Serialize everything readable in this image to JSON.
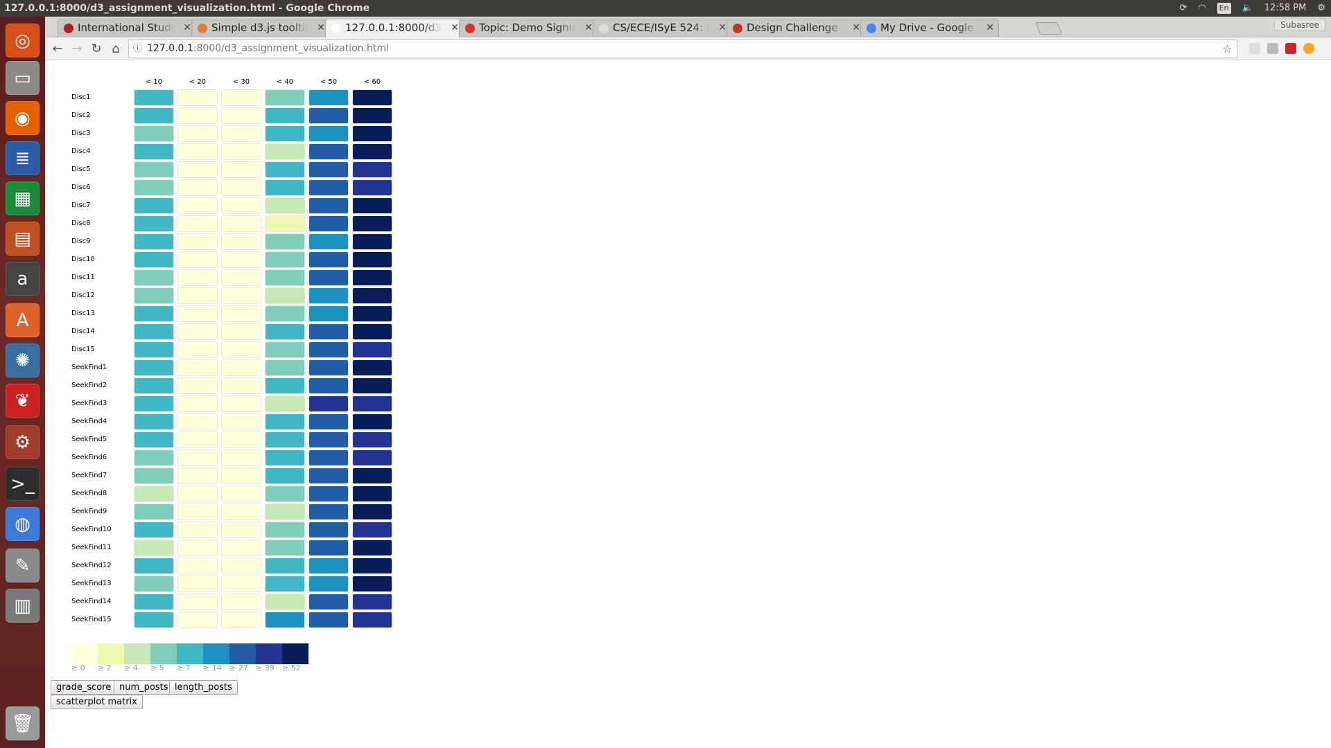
{
  "window": {
    "title": "127.0.0.1:8000/d3_assignment_visualization.html - Google Chrome",
    "clock": "12:58 PM",
    "keyboard": "En",
    "profile": "Subasree"
  },
  "tabs": [
    {
      "label": "International Stude",
      "favicon_color": "#b22222"
    },
    {
      "label": "Simple d3.js tooltip",
      "favicon_color": "#e07b39"
    },
    {
      "label": "127.0.0.1:8000/d3_a",
      "favicon_color": "#ffffff",
      "active": true
    },
    {
      "label": "Topic: Demo Signup",
      "favicon_color": "#d9322b"
    },
    {
      "label": "CS/ECE/ISyE 524: In",
      "favicon_color": "#dddddd"
    },
    {
      "label": "Design Challenge 3",
      "favicon_color": "#c0392b"
    },
    {
      "label": "My Drive - Google D",
      "favicon_color": "#4285f4"
    }
  ],
  "address": {
    "host": "127.0.0.1",
    "path": ":8000/d3_assignment_visualization.html"
  },
  "launcher": [
    {
      "icon": "ubuntu-dash-icon",
      "color": "#d94d17",
      "glyph": "◎"
    },
    {
      "icon": "files-icon",
      "color": "#8d8a85",
      "glyph": "▭"
    },
    {
      "icon": "firefox-icon",
      "color": "#e66000",
      "glyph": "◉"
    },
    {
      "icon": "writer-icon",
      "color": "#2a5ca8",
      "glyph": "≣"
    },
    {
      "icon": "calc-icon",
      "color": "#1e8a3c",
      "glyph": "▦"
    },
    {
      "icon": "impress-icon",
      "color": "#c0501f",
      "glyph": "▤"
    },
    {
      "icon": "amazon-icon",
      "color": "#444444",
      "glyph": "a"
    },
    {
      "icon": "software-center-icon",
      "color": "#e0622b",
      "glyph": "A"
    },
    {
      "icon": "shutter-icon",
      "color": "#3a6ea5",
      "glyph": "✺"
    },
    {
      "icon": "acrobat-icon",
      "color": "#cc2222",
      "glyph": "❦"
    },
    {
      "icon": "settings-icon",
      "color": "#a33b2a",
      "glyph": "⚙"
    },
    {
      "icon": "terminal-icon",
      "color": "#2c2c2c",
      "glyph": ">_"
    },
    {
      "icon": "chrome-icon",
      "color": "#3b78d8",
      "glyph": "◍"
    },
    {
      "icon": "text-editor-icon",
      "color": "#8a8a8a",
      "glyph": "✎"
    },
    {
      "icon": "scanner-icon",
      "color": "#7a7a7a",
      "glyph": "▥"
    },
    {
      "icon": "trash-icon",
      "color": "#9a9a9a",
      "glyph": "🗑"
    }
  ],
  "chart_data": {
    "type": "heatmap",
    "columns": [
      "< 10",
      "< 20",
      "< 30",
      "< 40",
      "< 50",
      "< 60"
    ],
    "rows": [
      "Disc1",
      "Disc2",
      "Disc3",
      "Disc4",
      "Disc5",
      "Disc6",
      "Disc7",
      "Disc8",
      "Disc9",
      "Disc10",
      "Disc11",
      "Disc12",
      "Disc13",
      "Disc14",
      "Disc15",
      "SeekFind1",
      "SeekFind2",
      "SeekFind3",
      "SeekFind4",
      "SeekFind5",
      "SeekFind6",
      "SeekFind7",
      "SeekFind8",
      "SeekFind9",
      "SeekFind10",
      "SeekFind11",
      "SeekFind12",
      "SeekFind13",
      "SeekFind14",
      "SeekFind15"
    ],
    "color_bins": [
      0,
      2,
      4,
      5,
      7,
      14,
      27,
      39,
      52
    ],
    "colors": [
      "#ffffd9",
      "#edf8b1",
      "#c7e9b4",
      "#7fcdbb",
      "#41b6c4",
      "#1d91c0",
      "#225ea8",
      "#253494",
      "#081d58"
    ],
    "values": [
      [
        7,
        0,
        0,
        5,
        14,
        52
      ],
      [
        7,
        0,
        0,
        7,
        27,
        52
      ],
      [
        5,
        0,
        0,
        7,
        14,
        52
      ],
      [
        7,
        0,
        0,
        4,
        27,
        52
      ],
      [
        5,
        0,
        0,
        7,
        27,
        39
      ],
      [
        5,
        0,
        0,
        7,
        27,
        39
      ],
      [
        7,
        0,
        0,
        4,
        27,
        52
      ],
      [
        7,
        0,
        0,
        2,
        27,
        52
      ],
      [
        7,
        0,
        0,
        5,
        14,
        52
      ],
      [
        7,
        0,
        0,
        5,
        27,
        52
      ],
      [
        5,
        0,
        0,
        5,
        27,
        52
      ],
      [
        5,
        0,
        0,
        4,
        14,
        52
      ],
      [
        7,
        0,
        0,
        5,
        14,
        52
      ],
      [
        7,
        0,
        0,
        7,
        27,
        52
      ],
      [
        7,
        0,
        0,
        5,
        27,
        39
      ],
      [
        7,
        0,
        0,
        5,
        27,
        52
      ],
      [
        7,
        0,
        0,
        7,
        27,
        52
      ],
      [
        7,
        0,
        0,
        4,
        39,
        39
      ],
      [
        7,
        0,
        0,
        7,
        27,
        52
      ],
      [
        7,
        0,
        0,
        7,
        27,
        39
      ],
      [
        5,
        0,
        0,
        7,
        27,
        39
      ],
      [
        5,
        0,
        0,
        7,
        27,
        52
      ],
      [
        4,
        0,
        0,
        5,
        27,
        52
      ],
      [
        5,
        0,
        0,
        4,
        27,
        52
      ],
      [
        7,
        0,
        0,
        5,
        27,
        39
      ],
      [
        4,
        0,
        0,
        5,
        27,
        52
      ],
      [
        7,
        0,
        0,
        7,
        14,
        52
      ],
      [
        5,
        0,
        0,
        7,
        14,
        52
      ],
      [
        7,
        0,
        0,
        4,
        27,
        39
      ],
      [
        7,
        0,
        0,
        14,
        27,
        39
      ]
    ],
    "legend_labels": [
      "≥ 0",
      "≥ 2",
      "≥ 4",
      "≥ 5",
      "≥ 7",
      "≥ 14",
      "≥ 27",
      "≥ 39",
      "≥ 52"
    ]
  },
  "buttons": {
    "grade_score": "grade_score",
    "num_posts": "num_posts",
    "length_posts": "length_posts",
    "scatterplot": "scatterplot matrix"
  }
}
